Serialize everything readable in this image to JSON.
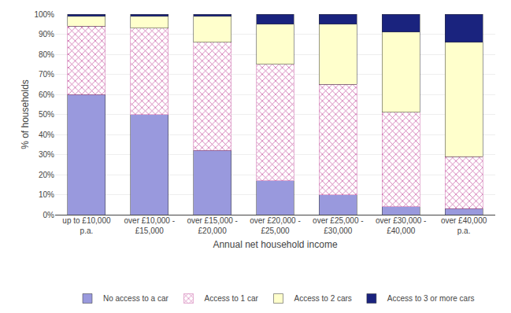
{
  "chart_data": {
    "type": "bar",
    "stacked": true,
    "categories": [
      "up to £10,000\np.a.",
      "over £10,000 -\n£15,000",
      "over £15,000 -\n£20,000",
      "over £20,000 -\n£25,000",
      "over £25,000 -\n£30,000",
      "over £30,000 -\n£40,000",
      "over £40,000\np.a."
    ],
    "series": [
      {
        "name": "No access to a car",
        "color": "#9999dd",
        "values": [
          60,
          50,
          32,
          17,
          10,
          4,
          3
        ]
      },
      {
        "name": "Access to 1 car",
        "color": "#cc66aa",
        "marker": "x",
        "values": [
          34,
          43,
          54,
          58,
          55,
          47,
          26
        ]
      },
      {
        "name": "Access to 2 cars",
        "color": "#ffffcc",
        "values": [
          5,
          6,
          13,
          20,
          30,
          40,
          57
        ]
      },
      {
        "name": "Access to 3 or more cars",
        "color": "#1a237e",
        "values": [
          1,
          1,
          1,
          5,
          5,
          9,
          14
        ]
      }
    ],
    "xlabel": "Annual net household income",
    "ylabel": "% of households",
    "ylim": [
      0,
      100
    ],
    "yticks": [
      {
        "value": 0,
        "label": "0%"
      },
      {
        "value": 10,
        "label": "10%"
      },
      {
        "value": 20,
        "label": "20%"
      },
      {
        "value": 30,
        "label": "30%"
      },
      {
        "value": 40,
        "label": "40%"
      },
      {
        "value": 50,
        "label": "50%"
      },
      {
        "value": 60,
        "label": "60%"
      },
      {
        "value": 70,
        "label": "70%"
      },
      {
        "value": 80,
        "label": "80%"
      },
      {
        "value": 90,
        "label": "90%"
      },
      {
        "value": 100,
        "label": "100%"
      }
    ],
    "grid": true,
    "legend": "bottom"
  }
}
